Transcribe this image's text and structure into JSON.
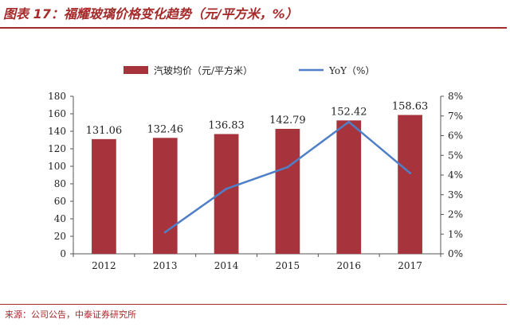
{
  "title": "图表 17：福耀玻璃价格变化趋势（元/平方米，%）",
  "source": "来源：公司公告，中泰证券研究所",
  "colors": {
    "bar": "#a7343c",
    "line": "#4f7fc6",
    "accent": "#a52a2a"
  },
  "chart_data": {
    "type": "bar",
    "categories": [
      "2012",
      "2013",
      "2014",
      "2015",
      "2016",
      "2017"
    ],
    "series": [
      {
        "name": "汽玻均价（元/平方米）",
        "type": "bar",
        "axis": "left",
        "values": [
          131.06,
          132.46,
          136.83,
          142.79,
          152.42,
          158.63
        ],
        "labels": [
          "131.06",
          "132.46",
          "136.83",
          "142.79",
          "152.42",
          "158.63"
        ]
      },
      {
        "name": "YoY（%）",
        "type": "line",
        "axis": "right",
        "values": [
          null,
          1.1,
          3.3,
          4.4,
          6.7,
          4.1
        ]
      }
    ],
    "y_left": {
      "ylim": [
        0,
        180
      ],
      "ticks": [
        "0",
        "20",
        "40",
        "60",
        "80",
        "100",
        "120",
        "140",
        "160",
        "180"
      ]
    },
    "y_right": {
      "ylim": [
        0,
        8
      ],
      "ticks": [
        "0%",
        "1%",
        "2%",
        "3%",
        "4%",
        "5%",
        "6%",
        "7%",
        "8%"
      ]
    },
    "legend_position": "top-center",
    "grid": false
  }
}
